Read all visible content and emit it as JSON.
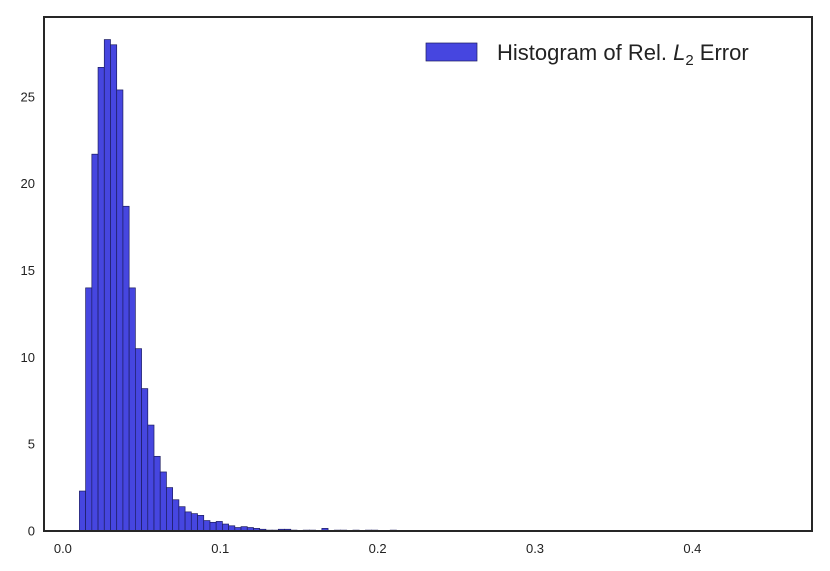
{
  "chart_data": {
    "type": "bar",
    "title": "",
    "xlabel": "",
    "ylabel": "",
    "xlim": [
      -0.012,
      0.476
    ],
    "ylim": [
      0,
      29.6
    ],
    "grid": false,
    "legend_position": "top-right",
    "bar_color": "#4646e0",
    "bar_edge_color": "#1c1c60",
    "bin_width": 0.00395,
    "x_ticks": [
      {
        "value": 0.0,
        "label": "0.0"
      },
      {
        "value": 0.1,
        "label": "0.1"
      },
      {
        "value": 0.2,
        "label": "0.2"
      },
      {
        "value": 0.3,
        "label": "0.3"
      },
      {
        "value": 0.4,
        "label": "0.4"
      }
    ],
    "y_ticks": [
      {
        "value": 0,
        "label": "0"
      },
      {
        "value": 5,
        "label": "5"
      },
      {
        "value": 10,
        "label": "10"
      },
      {
        "value": 15,
        "label": "15"
      },
      {
        "value": 20,
        "label": "20"
      },
      {
        "value": 25,
        "label": "25"
      }
    ],
    "legend": {
      "prefix": "Histogram of Rel. ",
      "symbol": "L",
      "subscript": "2",
      "suffix": " Error"
    },
    "bins_start": [
      0.0105,
      0.01445,
      0.0184,
      0.02235,
      0.0263,
      0.03025,
      0.0342,
      0.03815,
      0.0421,
      0.04605,
      0.05,
      0.05395,
      0.0579,
      0.06185,
      0.0658,
      0.06975,
      0.0737,
      0.07765,
      0.0816,
      0.08555,
      0.0895,
      0.09345,
      0.0974,
      0.10135,
      0.1053,
      0.10925,
      0.1132,
      0.11715,
      0.1211,
      0.12505,
      0.129,
      0.13295,
      0.1369,
      0.14085,
      0.1448,
      0.14875,
      0.1527,
      0.15665,
      0.1606,
      0.16455,
      0.1685,
      0.17245,
      0.1764,
      0.18035,
      0.1843,
      0.18825,
      0.1922,
      0.19615,
      0.2001,
      0.20405,
      0.208
    ],
    "values": [
      2.3,
      14.0,
      21.7,
      26.7,
      28.3,
      28.0,
      25.4,
      18.7,
      14.0,
      10.5,
      8.2,
      6.1,
      4.3,
      3.4,
      2.5,
      1.8,
      1.4,
      1.1,
      1.0,
      0.9,
      0.6,
      0.5,
      0.55,
      0.4,
      0.3,
      0.2,
      0.25,
      0.2,
      0.15,
      0.1,
      0.05,
      0.05,
      0.1,
      0.1,
      0.05,
      0.0,
      0.05,
      0.05,
      0.0,
      0.15,
      0.0,
      0.05,
      0.05,
      0.0,
      0.05,
      0.0,
      0.05,
      0.05,
      0.0,
      0.0,
      0.05
    ]
  }
}
